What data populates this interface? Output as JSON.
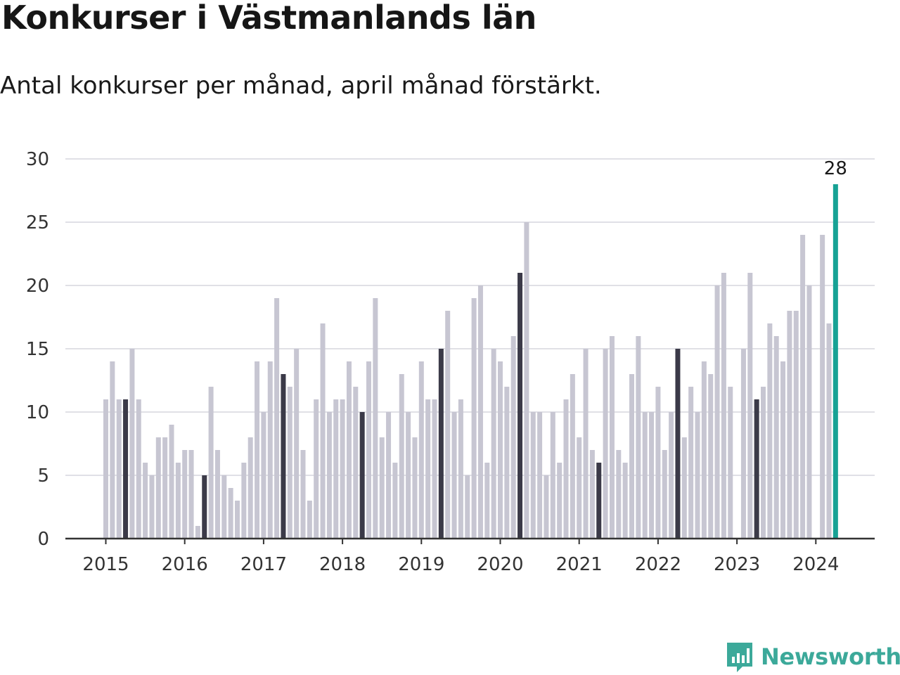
{
  "title": "Konkurser i Västmanlands län",
  "subtitle": "Antal konkurser per månad, april månad förstärkt.",
  "brand": "Newsworthy",
  "chart_data": {
    "type": "bar",
    "title": "Konkurser i Västmanlands län",
    "subtitle": "Antal konkurser per månad, april månad förstärkt.",
    "xlabel": "",
    "ylabel": "",
    "ylim": [
      0,
      30
    ],
    "yticks": [
      0,
      5,
      10,
      15,
      20,
      25,
      30
    ],
    "xtick_labels": [
      "2015",
      "2016",
      "2017",
      "2018",
      "2019",
      "2020",
      "2021",
      "2022",
      "2023",
      "2024"
    ],
    "grid": true,
    "start": "2015-01",
    "highlight_month": "april",
    "colors": {
      "default": "#c7c6d2",
      "april": "#3b3a48",
      "latest": "#17a295",
      "grid": "#e0e0e6",
      "axis": "#333333"
    },
    "latest_label": "28",
    "categories": [
      "2015-01",
      "2015-02",
      "2015-03",
      "2015-04",
      "2015-05",
      "2015-06",
      "2015-07",
      "2015-08",
      "2015-09",
      "2015-10",
      "2015-11",
      "2015-12",
      "2016-01",
      "2016-02",
      "2016-03",
      "2016-04",
      "2016-05",
      "2016-06",
      "2016-07",
      "2016-08",
      "2016-09",
      "2016-10",
      "2016-11",
      "2016-12",
      "2017-01",
      "2017-02",
      "2017-03",
      "2017-04",
      "2017-05",
      "2017-06",
      "2017-07",
      "2017-08",
      "2017-09",
      "2017-10",
      "2017-11",
      "2017-12",
      "2018-01",
      "2018-02",
      "2018-03",
      "2018-04",
      "2018-05",
      "2018-06",
      "2018-07",
      "2018-08",
      "2018-09",
      "2018-10",
      "2018-11",
      "2018-12",
      "2019-01",
      "2019-02",
      "2019-03",
      "2019-04",
      "2019-05",
      "2019-06",
      "2019-07",
      "2019-08",
      "2019-09",
      "2019-10",
      "2019-11",
      "2019-12",
      "2020-01",
      "2020-02",
      "2020-03",
      "2020-04",
      "2020-05",
      "2020-06",
      "2020-07",
      "2020-08",
      "2020-09",
      "2020-10",
      "2020-11",
      "2020-12",
      "2021-01",
      "2021-02",
      "2021-03",
      "2021-04",
      "2021-05",
      "2021-06",
      "2021-07",
      "2021-08",
      "2021-09",
      "2021-10",
      "2021-11",
      "2021-12",
      "2022-01",
      "2022-02",
      "2022-03",
      "2022-04",
      "2022-05",
      "2022-06",
      "2022-07",
      "2022-08",
      "2022-09",
      "2022-10",
      "2022-11",
      "2022-12",
      "2023-01",
      "2023-02",
      "2023-03",
      "2023-04",
      "2023-05",
      "2023-06",
      "2023-07",
      "2023-08",
      "2023-09",
      "2023-10",
      "2023-11",
      "2023-12",
      "2024-01",
      "2024-02",
      "2024-03",
      "2024-04"
    ],
    "values": [
      11,
      14,
      11,
      11,
      15,
      11,
      6,
      5,
      8,
      8,
      9,
      6,
      7,
      7,
      1,
      5,
      12,
      7,
      5,
      4,
      3,
      6,
      8,
      14,
      10,
      14,
      19,
      13,
      12,
      15,
      7,
      3,
      11,
      17,
      10,
      11,
      11,
      14,
      12,
      10,
      14,
      19,
      8,
      10,
      6,
      13,
      10,
      8,
      14,
      11,
      11,
      15,
      18,
      10,
      11,
      5,
      19,
      20,
      6,
      15,
      14,
      12,
      16,
      21,
      25,
      10,
      10,
      5,
      10,
      6,
      11,
      13,
      8,
      15,
      7,
      6,
      15,
      16,
      7,
      6,
      13,
      16,
      10,
      10,
      12,
      7,
      10,
      15,
      8,
      12,
      10,
      14,
      13,
      20,
      21,
      12,
      0,
      15,
      21,
      11,
      12,
      17,
      16,
      14,
      18,
      18,
      24,
      20,
      0,
      24,
      17,
      28
    ]
  }
}
